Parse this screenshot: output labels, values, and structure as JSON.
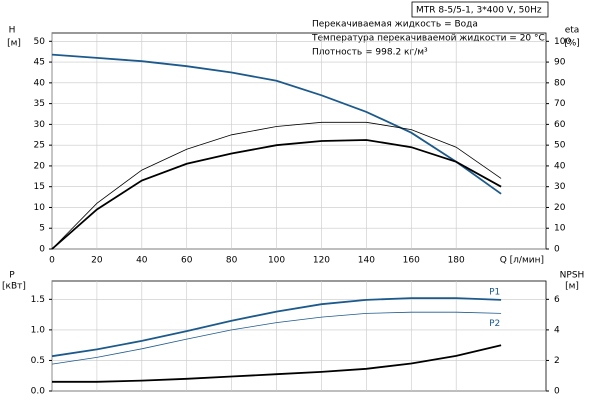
{
  "chart_data": [
    {
      "type": "line",
      "annotations": [
        "MTR 8-5/5-1, 3*400 V, 50Hz",
        "Перекачиваемая жидкость = Вода",
        "Температура перекачиваемой жидкости = 20 °C",
        "Плотность = 998.2 кг/м³"
      ],
      "ylabel": "H",
      "yunit": "[м]",
      "y2label": "eta",
      "y2unit": "[%]",
      "xlabel": "Q [л/мин]",
      "x": [
        0,
        20,
        40,
        60,
        80,
        100,
        120,
        140,
        160,
        180,
        200
      ],
      "xlim": [
        0,
        220
      ],
      "xticks": [
        0,
        20,
        40,
        60,
        80,
        100,
        120,
        140,
        160,
        180
      ],
      "show_xtick_labels": true,
      "ylim": [
        0,
        52
      ],
      "yticks": [
        0,
        5,
        10,
        15,
        20,
        25,
        30,
        35,
        40,
        45,
        50
      ],
      "y2lim": [
        0,
        104
      ],
      "y2ticks": [
        0,
        10,
        20,
        30,
        40,
        50,
        60,
        70,
        80,
        90,
        100
      ],
      "grid": true,
      "series": [
        {
          "color": "#1c5a8c",
          "line_width": 1.8,
          "values": [
            46.8,
            46,
            45.2,
            44,
            42.5,
            40.5,
            37,
            33,
            28,
            21,
            13.3
          ]
        },
        {
          "color": "#000000",
          "line_width": 0.8,
          "axis": "y2",
          "values": [
            0,
            22,
            38,
            48,
            55,
            59,
            61,
            61,
            57.5,
            49,
            34
          ]
        },
        {
          "color": "#000000",
          "line_width": 1.8,
          "axis": "y2",
          "values": [
            0,
            19,
            33,
            41,
            46,
            50,
            52,
            52.5,
            49,
            42,
            30
          ]
        }
      ]
    },
    {
      "type": "line",
      "ylabel": "P",
      "yunit": "[кВт]",
      "y2label": "NPSH",
      "y2unit": "[м]",
      "x": [
        0,
        20,
        40,
        60,
        80,
        100,
        120,
        140,
        160,
        180,
        200
      ],
      "xlim": [
        0,
        220
      ],
      "xticks": [
        0,
        20,
        40,
        60,
        80,
        100,
        120,
        140,
        160,
        180
      ],
      "show_xtick_labels": false,
      "ylim": [
        0,
        1.8
      ],
      "yticks": [
        {
          "value": 0,
          "label": "0.0"
        },
        0.5,
        {
          "value": 1,
          "label": "1.0"
        },
        1.5
      ],
      "y2lim": [
        0,
        7.2
      ],
      "y2ticks": [
        0,
        2,
        4,
        6
      ],
      "grid": true,
      "series": [
        {
          "name": "P1",
          "color": "#1c5a8c",
          "line_width": 1.8,
          "values": [
            0.57,
            0.68,
            0.82,
            0.98,
            1.15,
            1.3,
            1.42,
            1.49,
            1.52,
            1.52,
            1.49
          ]
        },
        {
          "name": "P2",
          "color": "#1c5a8c",
          "line_width": 0.8,
          "values": [
            0.44,
            0.55,
            0.69,
            0.85,
            1.0,
            1.12,
            1.21,
            1.27,
            1.29,
            1.29,
            1.27
          ]
        },
        {
          "color": "#000000",
          "line_width": 1.8,
          "axis": "y2",
          "values": [
            0.6,
            0.6,
            0.68,
            0.8,
            0.95,
            1.1,
            1.25,
            1.45,
            1.8,
            2.3,
            3.0
          ]
        }
      ]
    }
  ]
}
